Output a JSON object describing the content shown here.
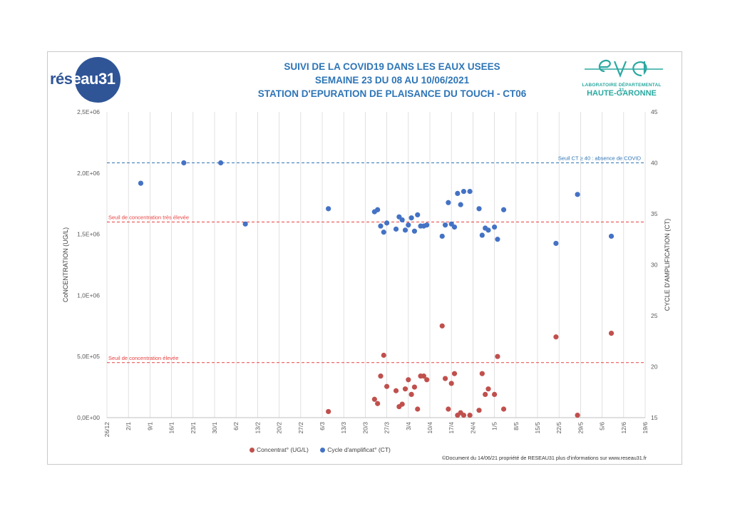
{
  "header": {
    "title_lines": [
      "SUIVI DE LA COVID19 DANS LES EAUX USEES",
      "SEMAINE 23 DU 08 AU 10/06/2021",
      "STATION D'EPURATION DE PLAISANCE DU TOUCH - CT06"
    ],
    "logo_left": {
      "part1": "rés",
      "part2": "eau31"
    },
    "logo_right": {
      "mark": "eva",
      "line1": "LABORATOIRE DÉPARTEMENTAL 31",
      "line2": "HAUTE-GARONNE"
    }
  },
  "colors": {
    "concentration": "#c0504d",
    "ct": "#4472c4",
    "threshold_red": "#e84040",
    "threshold_blue": "#2f75b5",
    "title": "#2e75b6"
  },
  "footer": "©Document du 14/06/21 propriété de RESEAU31 plus d'informations sur www.reseau31.fr",
  "chart_data": {
    "type": "scatter",
    "xlabel": "",
    "ylabel": "CoNCENTRATION  (UG/L)",
    "y2label": "CYCLE D'AMPLIFICATION (CT)",
    "x_ticks": [
      "26/12",
      "2/1",
      "9/1",
      "16/1",
      "23/1",
      "30/1",
      "6/2",
      "13/2",
      "20/2",
      "27/2",
      "6/3",
      "13/3",
      "20/3",
      "27/3",
      "3/4",
      "10/4",
      "17/4",
      "24/4",
      "1/5",
      "8/5",
      "15/5",
      "22/5",
      "29/5",
      "5/6",
      "12/6",
      "19/6"
    ],
    "x_range": [
      "2020-12-26",
      "2021-06-19"
    ],
    "y_ticks": [
      "0,0E+00",
      "5,0E+05",
      "1,0E+06",
      "1,5E+06",
      "2,0E+06",
      "2,5E+06"
    ],
    "ylim": [
      0,
      2500000
    ],
    "y2_ticks": [
      "15",
      "20",
      "25",
      "30",
      "35",
      "40",
      "45"
    ],
    "y2lim": [
      15,
      45
    ],
    "grid": "vertical",
    "legend_position": "bottom",
    "thresholds": [
      {
        "label": "Seuil CT ≥ 40 : absence de COVID",
        "axis": "y2",
        "value": 40
      },
      {
        "label": "Seuil de concentration très élevée",
        "axis": "y",
        "value": 1600000
      },
      {
        "label": "Seuil de concentration élevée",
        "axis": "y",
        "value": 450000
      }
    ],
    "series": [
      {
        "name": "Concentrat° (UG/L)",
        "axis": "y",
        "points": [
          [
            "2021-03-08",
            50000
          ],
          [
            "2021-03-23",
            150000
          ],
          [
            "2021-03-24",
            115000
          ],
          [
            "2021-03-25",
            340000
          ],
          [
            "2021-03-26",
            510000
          ],
          [
            "2021-03-27",
            255000
          ],
          [
            "2021-03-30",
            220000
          ],
          [
            "2021-03-31",
            90000
          ],
          [
            "2021-04-01",
            110000
          ],
          [
            "2021-04-02",
            235000
          ],
          [
            "2021-04-03",
            310000
          ],
          [
            "2021-04-04",
            190000
          ],
          [
            "2021-04-05",
            250000
          ],
          [
            "2021-04-06",
            70000
          ],
          [
            "2021-04-07",
            340000
          ],
          [
            "2021-04-08",
            340000
          ],
          [
            "2021-04-09",
            310000
          ],
          [
            "2021-04-14",
            750000
          ],
          [
            "2021-04-15",
            320000
          ],
          [
            "2021-04-16",
            70000
          ],
          [
            "2021-04-17",
            280000
          ],
          [
            "2021-04-18",
            360000
          ],
          [
            "2021-04-19",
            20000
          ],
          [
            "2021-04-20",
            40000
          ],
          [
            "2021-04-21",
            20000
          ],
          [
            "2021-04-23",
            20000
          ],
          [
            "2021-04-26",
            60000
          ],
          [
            "2021-04-27",
            360000
          ],
          [
            "2021-04-28",
            190000
          ],
          [
            "2021-04-29",
            235000
          ],
          [
            "2021-05-01",
            190000
          ],
          [
            "2021-05-02",
            500000
          ],
          [
            "2021-05-04",
            70000
          ],
          [
            "2021-05-21",
            660000
          ],
          [
            "2021-05-28",
            20000
          ],
          [
            "2021-06-08",
            690000
          ]
        ]
      },
      {
        "name": "Cycle d'amplificat° (CT)",
        "axis": "y2",
        "points": [
          [
            "2021-01-06",
            38.0
          ],
          [
            "2021-01-20",
            40.0
          ],
          [
            "2021-02-01",
            40.0
          ],
          [
            "2021-02-09",
            34.0
          ],
          [
            "2021-03-08",
            35.5
          ],
          [
            "2021-03-23",
            35.2
          ],
          [
            "2021-03-24",
            35.4
          ],
          [
            "2021-03-25",
            33.8
          ],
          [
            "2021-03-26",
            33.2
          ],
          [
            "2021-03-27",
            34.1
          ],
          [
            "2021-03-30",
            33.5
          ],
          [
            "2021-03-31",
            34.7
          ],
          [
            "2021-04-01",
            34.4
          ],
          [
            "2021-04-02",
            33.4
          ],
          [
            "2021-04-03",
            33.9
          ],
          [
            "2021-04-04",
            34.6
          ],
          [
            "2021-04-05",
            33.3
          ],
          [
            "2021-04-06",
            34.9
          ],
          [
            "2021-04-07",
            33.8
          ],
          [
            "2021-04-08",
            33.8
          ],
          [
            "2021-04-09",
            33.9
          ],
          [
            "2021-04-14",
            32.8
          ],
          [
            "2021-04-15",
            33.9
          ],
          [
            "2021-04-16",
            36.1
          ],
          [
            "2021-04-17",
            34.0
          ],
          [
            "2021-04-18",
            33.7
          ],
          [
            "2021-04-19",
            37.0
          ],
          [
            "2021-04-20",
            35.9
          ],
          [
            "2021-04-21",
            37.2
          ],
          [
            "2021-04-23",
            37.2
          ],
          [
            "2021-04-26",
            35.5
          ],
          [
            "2021-04-27",
            32.9
          ],
          [
            "2021-04-28",
            33.6
          ],
          [
            "2021-04-29",
            33.4
          ],
          [
            "2021-05-01",
            33.7
          ],
          [
            "2021-05-02",
            32.5
          ],
          [
            "2021-05-04",
            35.4
          ],
          [
            "2021-05-21",
            32.1
          ],
          [
            "2021-05-28",
            36.9
          ],
          [
            "2021-06-08",
            32.8
          ]
        ]
      }
    ]
  }
}
